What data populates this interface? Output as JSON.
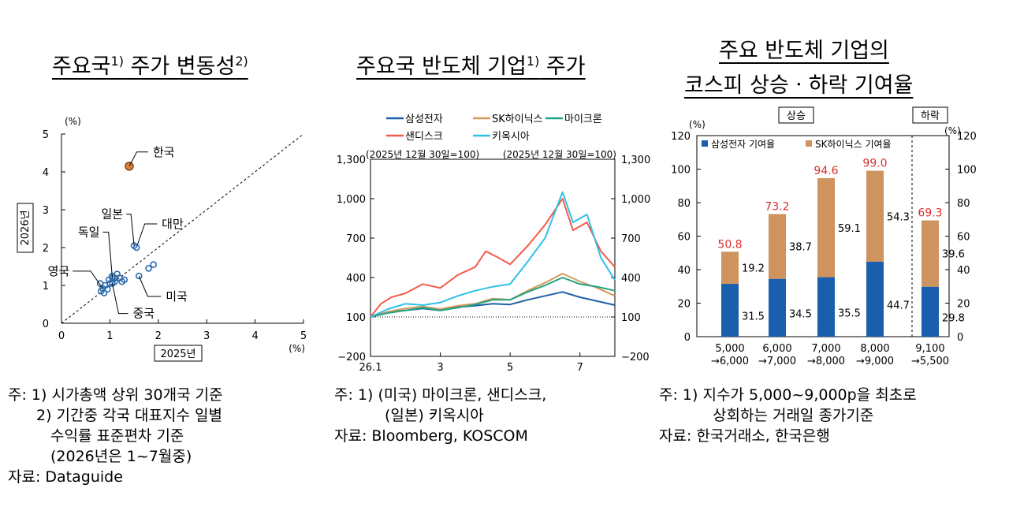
{
  "panels": {
    "p1": {
      "title": "주요국",
      "title_sup1": "1)",
      "title_mid": " 주가 변동성",
      "title_sup2": "2)"
    },
    "p2": {
      "title": "주요국 반도체 기업",
      "title_sup": "1)",
      "title_tail": " 주가"
    },
    "p3": {
      "title_line1": "주요 반도체 기업의",
      "title_line2": "코스피 상승ㆍ하락 기여율"
    }
  },
  "notes": {
    "p1": [
      "주: 1) 시가총액 상위 30개국 기준",
      "2) 기간중 각국 대표지수 일별",
      "수익률 표준편차 기준",
      "(2026년은 1~7월중)",
      "자료: Dataguide"
    ],
    "p2": [
      "주: 1) (미국) 마이크론, 샌디스크,",
      "(일본) 키옥시아",
      "자료: Bloomberg, KOSCOM"
    ],
    "p3": [
      "주: 1) 지수가 5,000~9,000p을 최초로",
      "상회하는 거래일 종가기준",
      "자료: 한국거래소, 한국은행"
    ]
  },
  "colors": {
    "samsung": "#1f5fa8",
    "hynix": "#d49a5c",
    "micron": "#21a383",
    "sandisk": "#f25c4b",
    "kioxia": "#2ec1e6",
    "kospi_samsung_bar": "#1a5fae",
    "kospi_hynix_bar": "#cf9360",
    "total_label": "#d9302c",
    "scatter_point": "#2d6bb0",
    "korea_point": "#d9823f"
  },
  "chart_data": [
    {
      "type": "scatter",
      "title": "주요국 주가 변동성",
      "xlabel": "2025년",
      "ylabel": "2026년",
      "x_unit": "(%)",
      "y_unit": "(%)",
      "xlim": [
        0,
        5
      ],
      "ylim": [
        0,
        5
      ],
      "x_ticks": [
        0,
        1,
        2,
        3,
        4,
        5
      ],
      "y_ticks": [
        0,
        1,
        2,
        3,
        4,
        5
      ],
      "reference_line": "45-degree dashed",
      "labeled_points": [
        {
          "label": "한국",
          "x": 1.4,
          "y": 4.15
        },
        {
          "label": "대만",
          "x": 1.55,
          "y": 2.0
        },
        {
          "label": "일본",
          "x": 1.5,
          "y": 2.05
        },
        {
          "label": "독일",
          "x": 1.05,
          "y": 1.2
        },
        {
          "label": "영국",
          "x": 0.85,
          "y": 0.92
        },
        {
          "label": "중국",
          "x": 1.05,
          "y": 1.05
        },
        {
          "label": "미국",
          "x": 1.6,
          "y": 1.25
        }
      ],
      "other_points": [
        [
          0.8,
          1.05
        ],
        [
          0.82,
          0.85
        ],
        [
          0.88,
          0.8
        ],
        [
          0.9,
          1.0
        ],
        [
          0.95,
          0.9
        ],
        [
          0.98,
          1.15
        ],
        [
          1.0,
          1.05
        ],
        [
          1.05,
          1.25
        ],
        [
          1.1,
          1.1
        ],
        [
          1.15,
          1.3
        ],
        [
          1.2,
          1.2
        ],
        [
          1.25,
          1.1
        ],
        [
          1.3,
          1.15
        ],
        [
          1.8,
          1.45
        ],
        [
          1.9,
          1.55
        ],
        [
          1.1,
          1.2
        ]
      ]
    },
    {
      "type": "line",
      "title": "주요국 반도체 기업 주가",
      "left_axis_note": "(2025년 12월 30일=100)",
      "right_axis_note": "(2025년 12월 30일=100)",
      "ylim": [
        -200,
        1300
      ],
      "y_ticks": [
        -200,
        100,
        400,
        700,
        1000,
        1300
      ],
      "y_tick_labels": [
        "−200",
        "100",
        "400",
        "700",
        "1,000",
        "1,300"
      ],
      "x_tick_labels": [
        {
          "label": "26.1",
          "month": 1
        },
        {
          "label": "3",
          "month": 3
        },
        {
          "label": "5",
          "month": 5
        },
        {
          "label": "7",
          "month": 7
        }
      ],
      "x_range_months": [
        1,
        8.0
      ],
      "series": [
        {
          "name": "삼성전자",
          "color_key": "samsung",
          "points": [
            [
              1,
              100
            ],
            [
              1.5,
              135
            ],
            [
              2,
              150
            ],
            [
              2.5,
              165
            ],
            [
              3,
              150
            ],
            [
              3.5,
              175
            ],
            [
              4,
              185
            ],
            [
              4.5,
              200
            ],
            [
              5,
              195
            ],
            [
              5.5,
              230
            ],
            [
              6,
              260
            ],
            [
              6.5,
              290
            ],
            [
              7,
              250
            ],
            [
              7.5,
              220
            ],
            [
              8.0,
              190
            ]
          ]
        },
        {
          "name": "SK하이닉스",
          "color_key": "hynix",
          "points": [
            [
              1,
              100
            ],
            [
              1.5,
              140
            ],
            [
              2,
              165
            ],
            [
              2.5,
              180
            ],
            [
              3,
              160
            ],
            [
              3.5,
              185
            ],
            [
              4,
              200
            ],
            [
              4.5,
              240
            ],
            [
              5,
              230
            ],
            [
              5.5,
              300
            ],
            [
              6,
              360
            ],
            [
              6.5,
              430
            ],
            [
              7,
              370
            ],
            [
              7.5,
              320
            ],
            [
              8.0,
              260
            ]
          ]
        },
        {
          "name": "마이크론",
          "color_key": "micron",
          "points": [
            [
              1,
              100
            ],
            [
              1.5,
              130
            ],
            [
              2,
              150
            ],
            [
              2.5,
              170
            ],
            [
              3,
              150
            ],
            [
              3.5,
              170
            ],
            [
              4,
              195
            ],
            [
              4.5,
              230
            ],
            [
              5,
              230
            ],
            [
              5.5,
              290
            ],
            [
              6,
              340
            ],
            [
              6.5,
              400
            ],
            [
              7,
              350
            ],
            [
              7.5,
              330
            ],
            [
              8.0,
              300
            ]
          ]
        },
        {
          "name": "샌디스크",
          "color_key": "sandisk",
          "points": [
            [
              1,
              100
            ],
            [
              1.3,
              200
            ],
            [
              1.6,
              250
            ],
            [
              2,
              280
            ],
            [
              2.5,
              350
            ],
            [
              3,
              320
            ],
            [
              3.5,
              420
            ],
            [
              4,
              480
            ],
            [
              4.3,
              600
            ],
            [
              4.6,
              560
            ],
            [
              5,
              500
            ],
            [
              5.5,
              640
            ],
            [
              6,
              800
            ],
            [
              6.5,
              1000
            ],
            [
              6.8,
              760
            ],
            [
              7.2,
              820
            ],
            [
              7.6,
              600
            ],
            [
              8.0,
              480
            ]
          ]
        },
        {
          "name": "키옥시아",
          "color_key": "kioxia",
          "points": [
            [
              1,
              100
            ],
            [
              1.5,
              160
            ],
            [
              2,
              200
            ],
            [
              2.5,
              190
            ],
            [
              3,
              210
            ],
            [
              3.5,
              260
            ],
            [
              4,
              300
            ],
            [
              4.5,
              330
            ],
            [
              5,
              350
            ],
            [
              5.5,
              520
            ],
            [
              6,
              700
            ],
            [
              6.5,
              1050
            ],
            [
              6.8,
              820
            ],
            [
              7.2,
              880
            ],
            [
              7.6,
              550
            ],
            [
              8.0,
              380
            ]
          ]
        }
      ]
    },
    {
      "type": "bar",
      "title": "주요 반도체 기업의 코스피 상승ㆍ하락 기여율",
      "y_unit_left": "(%)",
      "y_unit_right": "(%)",
      "ylim": [
        0,
        120
      ],
      "y_ticks": [
        0,
        20,
        40,
        60,
        80,
        100,
        120
      ],
      "section_up": "상승",
      "section_down": "하락",
      "categories": [
        {
          "line1": "5,000",
          "line2": "→6,000"
        },
        {
          "line1": "6,000",
          "line2": "→7,000"
        },
        {
          "line1": "7,000",
          "line2": "→8,000"
        },
        {
          "line1": "8,000",
          "line2": "→9,000"
        },
        {
          "line1": "9,100",
          "line2": "→5,500"
        }
      ],
      "series": [
        {
          "name": "삼성전자 기여율",
          "values": [
            31.5,
            34.5,
            35.5,
            44.7,
            29.8
          ]
        },
        {
          "name": "SK하이닉스 기여율",
          "values": [
            19.2,
            38.7,
            59.1,
            54.3,
            39.6
          ]
        }
      ],
      "totals": [
        50.8,
        73.2,
        94.6,
        99.0,
        69.3
      ],
      "samsung_labels": [
        "31.5",
        "34.5",
        "35.5",
        "44.7",
        "29.8"
      ],
      "hynix_labels": [
        "19.2",
        "38.7",
        "59.1",
        "54.3",
        "39.6"
      ],
      "total_labels": [
        "50.8",
        "73.2",
        "94.6",
        "99.0",
        "69.3"
      ]
    }
  ]
}
